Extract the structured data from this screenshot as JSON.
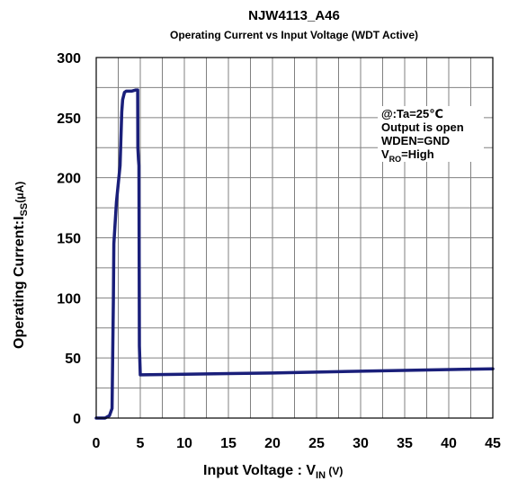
{
  "chart_data": {
    "type": "line",
    "title": "NJW4113_A46",
    "subtitle": "Operating Current vs Input Voltage (WDT Active)",
    "xlabel": {
      "main": "Input Voltage : V",
      "sub": "IN",
      "unit": " (V)"
    },
    "ylabel": {
      "main": "Operating Current:I",
      "sub": "SS",
      "unit": "(μA)"
    },
    "xlim": [
      0,
      45
    ],
    "ylim": [
      0,
      300
    ],
    "x_ticks": [
      0,
      5,
      10,
      15,
      20,
      25,
      30,
      35,
      40,
      45
    ],
    "y_ticks": [
      0,
      50,
      100,
      150,
      200,
      250,
      300
    ],
    "x_grid_step": 2.5,
    "y_grid_step": 25,
    "grid": true,
    "annotation": {
      "line1": "@:Ta=25℃",
      "line2": "Output is open",
      "line3": "WDEN=GND",
      "line4_prefix": "V",
      "line4_sub": "RO",
      "line4_suffix": "=High"
    },
    "series": [
      {
        "color": "#1a1f7a",
        "x": [
          0,
          1.0,
          1.5,
          1.8,
          1.95,
          2.0,
          2.3,
          2.7,
          2.9,
          3.0,
          3.2,
          3.4,
          4.0,
          4.5,
          4.7,
          4.72,
          4.8,
          4.85,
          4.9,
          5.0,
          5.2,
          10,
          20,
          30,
          45
        ],
        "y": [
          0,
          0,
          2,
          8,
          100,
          145,
          180,
          210,
          255,
          265,
          271,
          272,
          272,
          273,
          273,
          225,
          215,
          210,
          60,
          36,
          36,
          36.5,
          37.5,
          39,
          41
        ]
      }
    ]
  }
}
